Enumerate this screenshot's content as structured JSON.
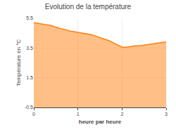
{
  "chart_data": {
    "type": "area",
    "title": "Evolution de la température",
    "xlabel": "heure par heure",
    "ylabel": "Température en °C",
    "x": [
      0,
      0.1,
      0.2,
      0.3,
      0.4,
      0.5,
      0.6,
      0.7,
      0.8,
      0.9,
      1.0,
      1.1,
      1.2,
      1.3,
      1.4,
      1.5,
      1.6,
      1.7,
      1.8,
      1.9,
      2.0,
      2.1,
      2.2,
      2.3,
      2.4,
      2.5,
      2.6,
      2.7,
      2.8,
      2.9,
      3.0
    ],
    "values": [
      5.2,
      5.15,
      5.1,
      5.05,
      5.0,
      4.9,
      4.8,
      4.75,
      4.65,
      4.6,
      4.55,
      4.5,
      4.45,
      4.4,
      4.3,
      4.2,
      4.1,
      4.0,
      3.85,
      3.7,
      3.55,
      3.55,
      3.6,
      3.65,
      3.65,
      3.7,
      3.75,
      3.8,
      3.85,
      3.87,
      3.9
    ],
    "xlim": [
      0,
      3
    ],
    "ylim": [
      -0.5,
      5.5
    ],
    "xticks": [
      0,
      1,
      2,
      3
    ],
    "yticks": [
      -0.5,
      1.5,
      3.5,
      5.5
    ],
    "grid": true
  }
}
